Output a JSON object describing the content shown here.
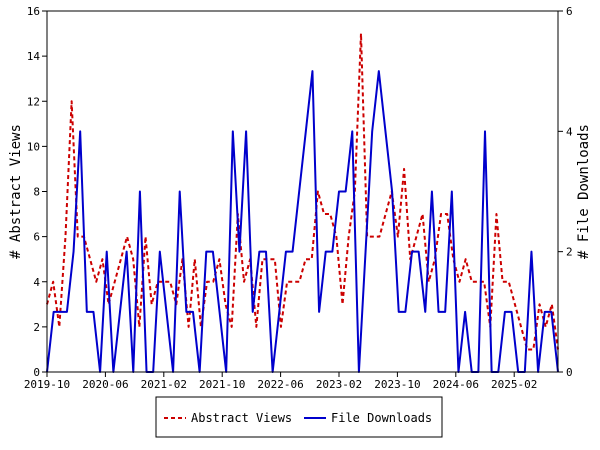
{
  "chart_data": {
    "type": "line",
    "x_tick_labels": [
      "2019-10",
      "2020-06",
      "2021-02",
      "2021-10",
      "2022-06",
      "2023-02",
      "2023-10",
      "2024-06",
      "2025-02"
    ],
    "left_axis": {
      "label": "# Abstract Views",
      "ylim": [
        0,
        16
      ],
      "ticks": [
        0,
        2,
        4,
        6,
        8,
        10,
        12,
        14,
        16
      ]
    },
    "right_axis": {
      "label": "# File Downloads",
      "ylim": [
        0,
        6
      ],
      "ticks": [
        0,
        2,
        4,
        6
      ]
    },
    "legend_placement": "bottom",
    "grid": false,
    "series": [
      {
        "name": "Abstract Views",
        "axis": "left",
        "color": "#cc0000",
        "style": "dashed",
        "values": [
          3,
          4,
          2,
          6,
          12,
          6,
          6,
          5,
          4,
          5,
          3,
          4,
          5,
          6,
          5,
          2,
          6,
          3,
          4,
          4,
          4,
          3,
          5,
          2,
          5,
          2,
          4,
          4,
          5,
          3,
          2,
          7,
          4,
          5,
          2,
          5,
          5,
          5,
          2,
          4,
          4,
          4,
          5,
          5,
          8,
          7,
          7,
          6,
          3,
          6,
          8,
          15,
          6,
          6,
          6,
          7,
          8,
          6,
          9,
          5,
          6,
          7,
          4,
          5,
          7,
          7,
          5,
          4,
          5,
          4,
          4,
          4,
          2,
          7,
          4,
          4,
          3,
          2,
          1,
          1,
          3,
          2,
          3,
          1
        ]
      },
      {
        "name": "File Downloads",
        "axis": "right",
        "color": "#0000cc",
        "style": "solid",
        "values": [
          0,
          1,
          1,
          1,
          2,
          4,
          1,
          1,
          0,
          2,
          0,
          1,
          2,
          0,
          3,
          0,
          0,
          2,
          1,
          0,
          3,
          1,
          1,
          0,
          2,
          2,
          1,
          0,
          4,
          2,
          4,
          1,
          2,
          2,
          0,
          1,
          2,
          2,
          3,
          4,
          5,
          1,
          2,
          2,
          3,
          3,
          4,
          0,
          2,
          4,
          5,
          4,
          3,
          1,
          1,
          2,
          2,
          1,
          3,
          1,
          1,
          3,
          0,
          1,
          0,
          0,
          4,
          0,
          0,
          1,
          1,
          0,
          0,
          2,
          0,
          1,
          1,
          0
        ]
      }
    ]
  }
}
